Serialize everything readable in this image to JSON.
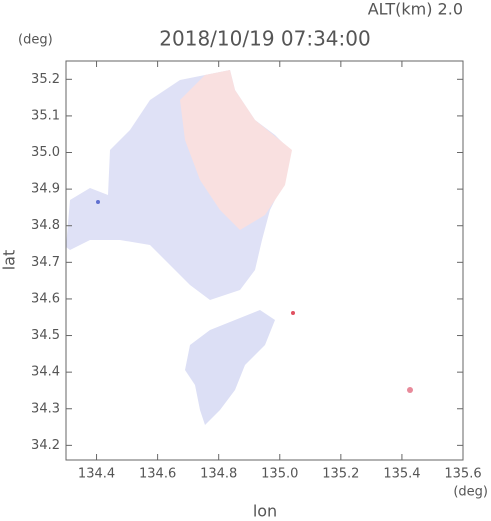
{
  "chart_data": {
    "type": "map",
    "title": "2018/10/19 07:34:00",
    "subtitle": "ALT(km) 2.0",
    "x_label": "lon",
    "y_label": "lat",
    "x_unit": "(deg)",
    "y_unit": "(deg)",
    "xlim": [
      134.3,
      135.6
    ],
    "ylim": [
      34.16,
      35.25
    ],
    "xticks": [
      134.4,
      134.6,
      134.8,
      {
        "value": 135.0,
        "label": "135.0"
      },
      135.2,
      135.4,
      135.6
    ],
    "yticks": [
      34.2,
      34.3,
      34.4,
      34.5,
      34.6,
      34.7,
      34.8,
      34.9,
      {
        "value": 35.0,
        "label": "35.0"
      },
      35.1,
      35.2
    ]
  }
}
